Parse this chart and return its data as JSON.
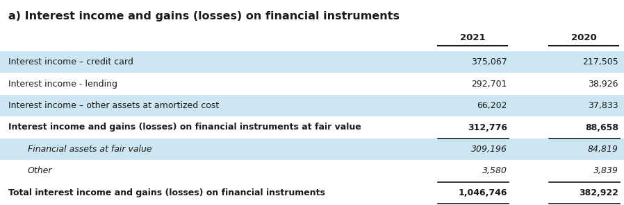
{
  "title": "a) Interest income and gains (losses) on financial instruments",
  "col_headers": [
    "2021",
    "2020"
  ],
  "rows": [
    {
      "label": "Interest income – credit card",
      "val2021": "375,067",
      "val2020": "217,505",
      "bold": false,
      "italic": false,
      "indent": false,
      "bg": "#cce6f4"
    },
    {
      "label": "Interest income - lending",
      "val2021": "292,701",
      "val2020": "38,926",
      "bold": false,
      "italic": false,
      "indent": false,
      "bg": "#ffffff"
    },
    {
      "label": "Interest income – other assets at amortized cost",
      "val2021": "66,202",
      "val2020": "37,833",
      "bold": false,
      "italic": false,
      "indent": false,
      "bg": "#cce6f4"
    },
    {
      "label": "Interest income and gains (losses) on financial instruments at fair value",
      "val2021": "312,776",
      "val2020": "88,658",
      "bold": true,
      "italic": false,
      "indent": false,
      "bg": "#ffffff",
      "line_below": true
    },
    {
      "label": "Financial assets at fair value",
      "val2021": "309,196",
      "val2020": "84,819",
      "bold": false,
      "italic": true,
      "indent": true,
      "bg": "#cce6f4"
    },
    {
      "label": "Other",
      "val2021": "3,580",
      "val2020": "3,839",
      "bold": false,
      "italic": true,
      "indent": true,
      "bg": "#ffffff",
      "line_below": true
    },
    {
      "label": "Total interest income and gains (losses) on financial instruments",
      "val2021": "1,046,746",
      "val2020": "382,922",
      "bold": true,
      "italic": false,
      "indent": false,
      "bg": "#ffffff",
      "line_below": true
    }
  ],
  "text_color": "#1a1a1a",
  "line_color": "#1a1a1a",
  "title_fontsize": 11.5,
  "header_fontsize": 9.5,
  "row_fontsize": 9.0
}
